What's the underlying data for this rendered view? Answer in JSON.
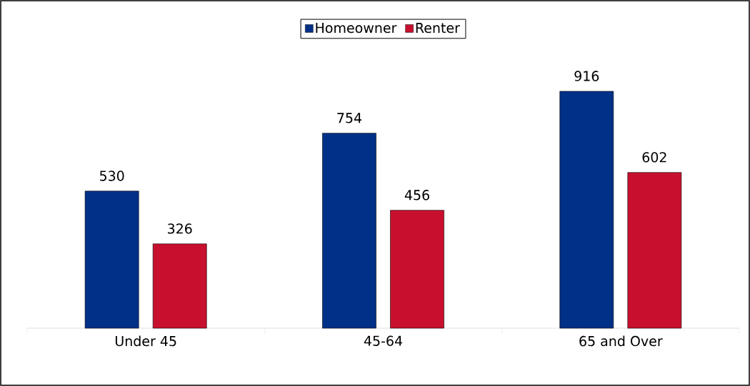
{
  "chart_data": {
    "type": "bar",
    "categories": [
      "Under 45",
      "45-64",
      "65 and Over"
    ],
    "series": [
      {
        "name": "Homeowner",
        "color": "#003087",
        "values": [
          530,
          754,
          916
        ]
      },
      {
        "name": "Renter",
        "color": "#c8102e",
        "values": [
          326,
          456,
          602
        ]
      }
    ],
    "data_labels": true,
    "legend": "top"
  }
}
